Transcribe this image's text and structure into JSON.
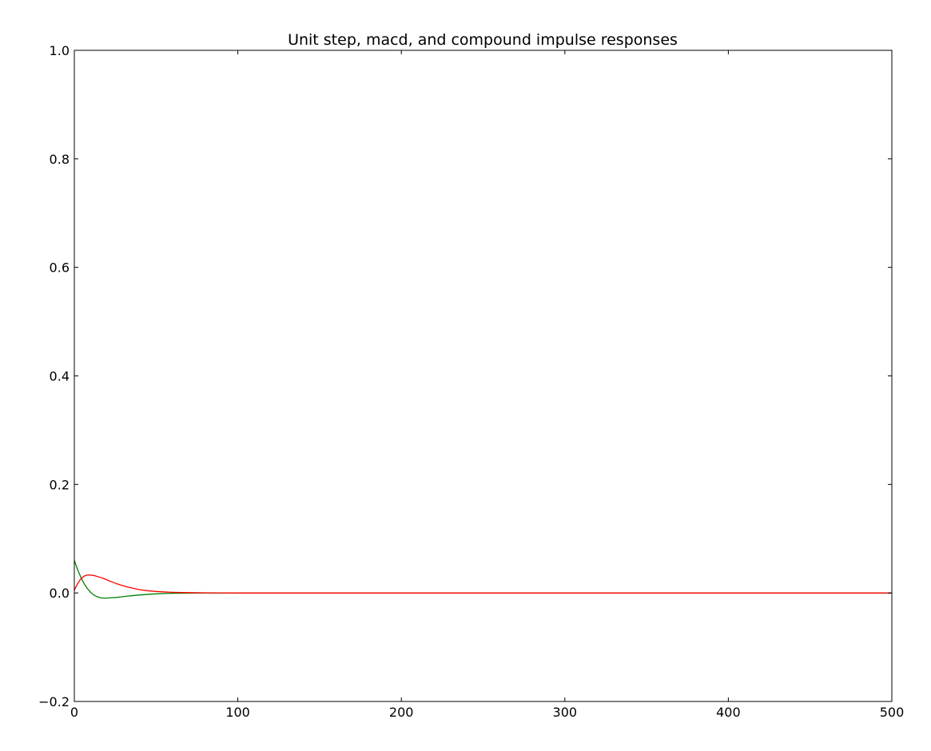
{
  "chart_data": {
    "type": "line",
    "title": "Unit step, macd, and compound impulse responses",
    "xlabel": "",
    "ylabel": "",
    "xlim": [
      0,
      500
    ],
    "ylim": [
      -0.2,
      1.0
    ],
    "grid": false,
    "x_ticks": [
      "0",
      "100",
      "200",
      "300",
      "400",
      "500"
    ],
    "y_ticks": [
      "−0.2",
      "0.0",
      "0.2",
      "0.4",
      "0.6",
      "0.8",
      "1.0"
    ],
    "series": [
      {
        "color": "#008000",
        "x": [
          0,
          2,
          4,
          6,
          8,
          10,
          12,
          14,
          16,
          18,
          20,
          22,
          25,
          28,
          32,
          36,
          40,
          45,
          50,
          55,
          60,
          70,
          80,
          90,
          100,
          150,
          200,
          300,
          400,
          500
        ],
        "y": [
          0.06,
          0.043,
          0.029,
          0.017,
          0.008,
          0.001,
          -0.004,
          -0.007,
          -0.009,
          -0.0095,
          -0.0095,
          -0.009,
          -0.0085,
          -0.0075,
          -0.006,
          -0.0048,
          -0.0037,
          -0.0026,
          -0.0017,
          -0.0011,
          -0.0007,
          -0.0003,
          -0.0001,
          0,
          0,
          0,
          0,
          0,
          0,
          0
        ]
      },
      {
        "color": "#ff0000",
        "x": [
          0,
          2,
          4,
          6,
          8,
          10,
          12,
          14,
          16,
          18,
          20,
          22,
          25,
          28,
          32,
          36,
          40,
          45,
          50,
          55,
          60,
          70,
          80,
          90,
          100,
          150,
          200,
          300,
          400,
          500
        ],
        "y": [
          0.005,
          0.017,
          0.026,
          0.031,
          0.033,
          0.033,
          0.032,
          0.0305,
          0.0285,
          0.0265,
          0.024,
          0.0215,
          0.018,
          0.015,
          0.0115,
          0.0085,
          0.006,
          0.004,
          0.0027,
          0.0018,
          0.0012,
          0.0005,
          0.0002,
          0.0001,
          0,
          0,
          0,
          0,
          0,
          0
        ]
      }
    ]
  }
}
